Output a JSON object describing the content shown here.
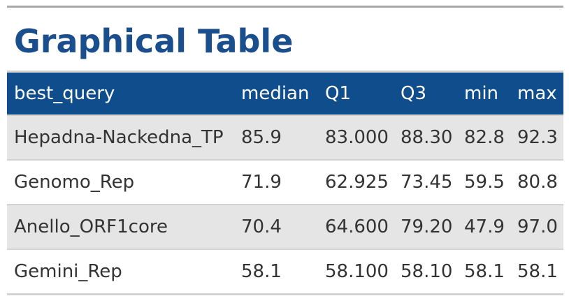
{
  "title": "Graphical Table",
  "table": {
    "headers": [
      "best_query",
      "median",
      "Q1",
      "Q3",
      "min",
      "max"
    ],
    "rows": [
      [
        "Hepadna-Nackedna_TP",
        "85.9",
        "83.000",
        "88.30",
        "82.8",
        "92.3"
      ],
      [
        "Genomo_Rep",
        "71.9",
        "62.925",
        "73.45",
        "59.5",
        "80.8"
      ],
      [
        "Anello_ORF1core",
        "70.4",
        "64.600",
        "79.20",
        "47.9",
        "97.0"
      ],
      [
        "Gemini_Rep",
        "58.1",
        "58.100",
        "58.10",
        "58.1",
        "58.1"
      ]
    ]
  }
}
